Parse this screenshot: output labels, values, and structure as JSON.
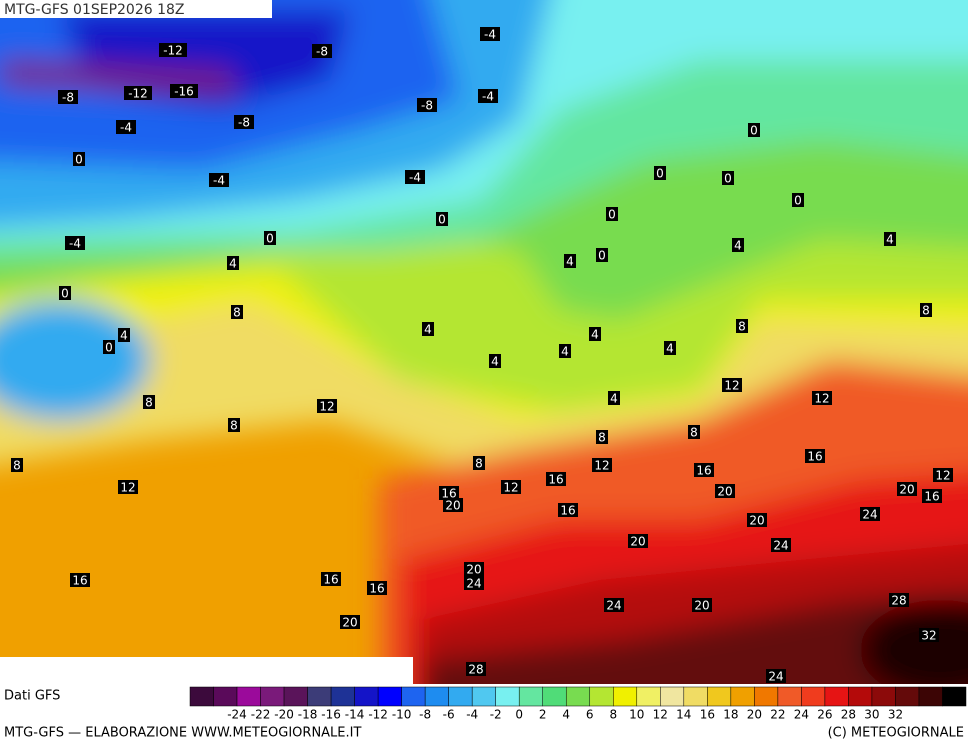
{
  "header": {
    "title": "MTG-GFS 01SEP2026 18Z"
  },
  "map": {
    "contour_labels": [
      -4,
      -12,
      -8,
      -8,
      -12,
      -16,
      -8,
      -4,
      -4,
      -8,
      0,
      0,
      -4,
      -4,
      0,
      0,
      0,
      0,
      0,
      -4,
      0,
      4,
      4,
      0,
      4,
      4,
      0,
      8,
      8,
      4,
      8,
      4,
      0,
      4,
      4,
      4,
      4,
      12,
      12,
      8,
      12,
      4,
      8,
      8,
      8,
      16,
      8,
      8,
      12,
      16,
      12,
      12,
      12,
      16,
      20,
      20,
      16,
      16,
      20,
      16,
      24,
      20,
      20,
      24,
      20,
      24,
      16,
      16,
      16,
      24,
      20,
      28,
      20,
      32,
      28,
      24
    ]
  },
  "legend": {
    "source": "Dati GFS",
    "colors": [
      "#3c0a3c",
      "#5a0a5a",
      "#9b0a9b",
      "#7a1a7a",
      "#5a145a",
      "#3c3c78",
      "#1e3296",
      "#1414c8",
      "#0000ff",
      "#1e64f0",
      "#1e8cf0",
      "#32aaf0",
      "#50c8f0",
      "#78f0f0",
      "#64e6a0",
      "#50dc78",
      "#78dc50",
      "#b4e632",
      "#f0f000",
      "#f0f064",
      "#f0e6a0",
      "#f0dc64",
      "#f0c81e",
      "#f0a000",
      "#f07800",
      "#f05a28",
      "#f03c1e",
      "#e61414",
      "#b40a0a",
      "#8c0a0a",
      "#640a0a",
      "#3c0505",
      "#000000"
    ],
    "ticks": [
      -24,
      -22,
      -20,
      -18,
      -16,
      -14,
      -12,
      -10,
      -8,
      -6,
      -4,
      -2,
      0,
      2,
      4,
      6,
      8,
      10,
      12,
      14,
      16,
      18,
      20,
      22,
      24,
      26,
      28,
      30,
      32
    ]
  },
  "footer": {
    "left": "MTG-GFS — ELABORAZIONE WWW.METEOGIORNALE.IT",
    "right": "(C) METEOGIORNALE"
  }
}
